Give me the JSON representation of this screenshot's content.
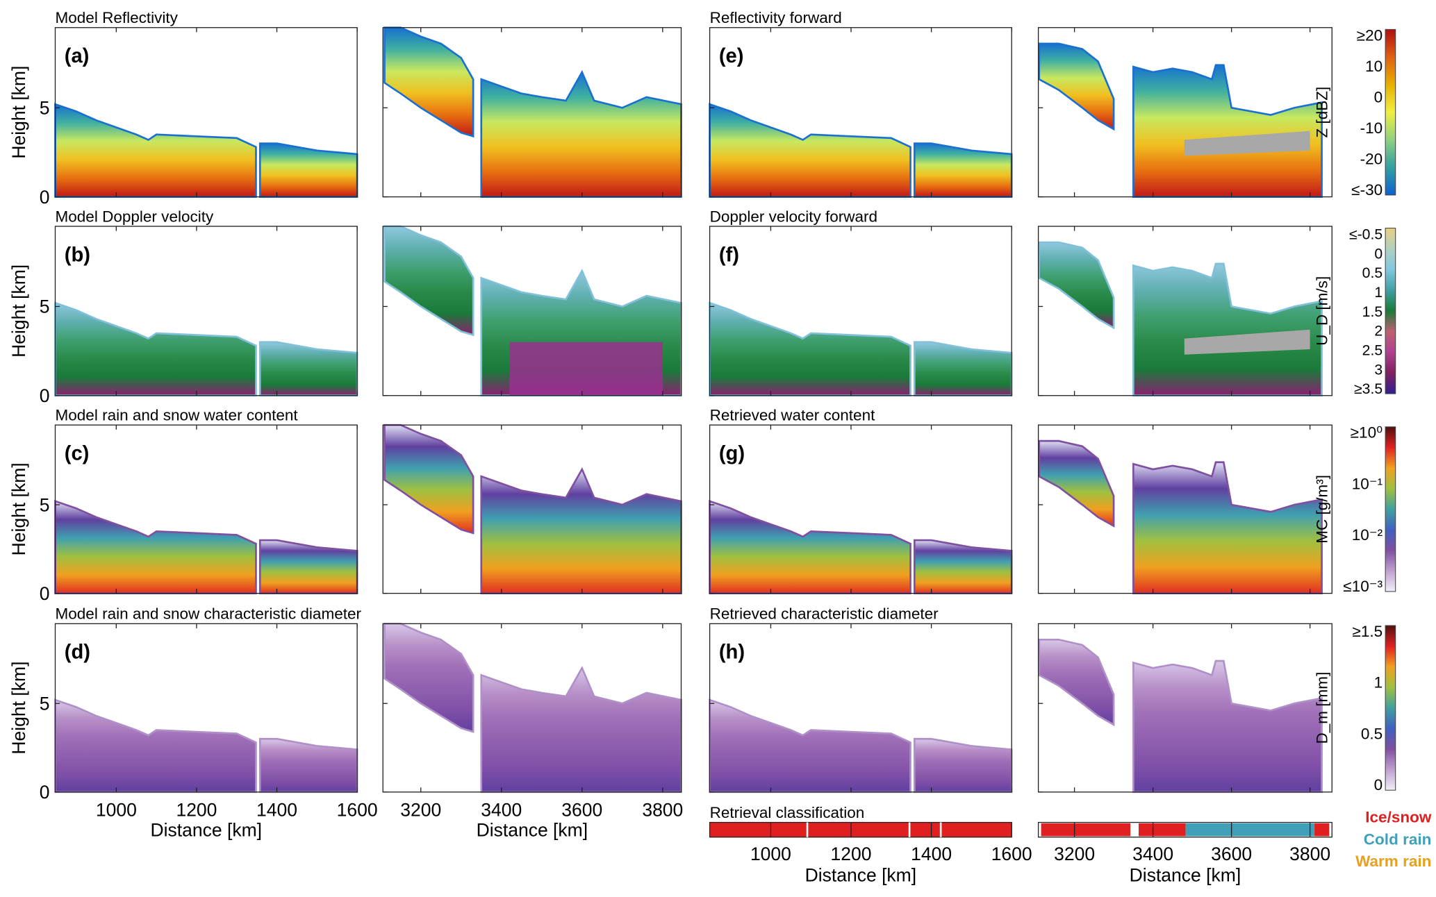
{
  "chart_data": {
    "type": "heatmap",
    "ylabel": "Height [km]",
    "xlabel": "Distance [km]",
    "ylim": [
      0,
      9.5
    ],
    "yticks": [
      "0",
      "5"
    ],
    "segments": [
      {
        "xlim": [
          848,
          1600
        ],
        "xticks": [
          "1000",
          "1200",
          "1400",
          "1600"
        ]
      },
      {
        "xlim": [
          3106,
          3846
        ],
        "xticks": [
          "3200",
          "3400",
          "3600",
          "3800"
        ]
      }
    ],
    "panels": [
      {
        "label": "(a)",
        "title": "Model Reflectivity",
        "variable": "Z"
      },
      {
        "label": "(b)",
        "title": "Model Doppler velocity",
        "variable": "UD"
      },
      {
        "label": "(c)",
        "title": "Model rain and snow water content",
        "variable": "MC"
      },
      {
        "label": "(d)",
        "title": "Model rain and snow characteristic diameter",
        "variable": "Dm"
      },
      {
        "label": "(e)",
        "title": "Reflectivity forward",
        "variable": "Z"
      },
      {
        "label": "(f)",
        "title": "Doppler velocity forward",
        "variable": "UD"
      },
      {
        "label": "(g)",
        "title": "Retrieved water content",
        "variable": "MC"
      },
      {
        "label": "(h)",
        "title": "Retrieved characteristic diameter",
        "variable": "Dm"
      }
    ],
    "colorbars": [
      {
        "label": "Z [dBZ]",
        "ticks": [
          "≥20",
          "10",
          "0",
          "-10",
          "-20",
          "≤-30"
        ],
        "colors": [
          "#b01010",
          "#e06010",
          "#e8b000",
          "#f0f040",
          "#90d080",
          "#30a0a0",
          "#1060d0"
        ]
      },
      {
        "label": "U_D [m/s]",
        "ticks": [
          "≤-0.5",
          "0",
          "0.5",
          "1",
          "1.5",
          "2",
          "2.5",
          "3",
          "≥3.5"
        ],
        "colors": [
          "#e8d080",
          "#b0d0c0",
          "#80c8e0",
          "#40a0a0",
          "#1a7a3a",
          "#c06070",
          "#b04090",
          "#802060",
          "#302090"
        ]
      },
      {
        "label": "MC [g/m³]",
        "ticks": [
          "≥10⁰",
          "10⁻¹",
          "10⁻²",
          "≤10⁻³"
        ],
        "colors": [
          "#501010",
          "#e02020",
          "#f0a020",
          "#a0c040",
          "#40a0a0",
          "#4060c0",
          "#8050a0",
          "#c0a0d0",
          "#f0f0f8"
        ]
      },
      {
        "label": "D_m [mm]",
        "ticks": [
          "≥1.5",
          "1",
          "0.5",
          "0"
        ],
        "colors": [
          "#501010",
          "#e02020",
          "#f0a020",
          "#a0c040",
          "#40a0a0",
          "#4060c0",
          "#8050a0",
          "#c0a0d0",
          "#f0f0f8"
        ]
      }
    ],
    "classification": {
      "title": "Retrieval classification",
      "legend": [
        {
          "label": "Ice/snow",
          "color": "#e02020"
        },
        {
          "label": "Cold rain",
          "color": "#40a0b8"
        },
        {
          "label": "Warm rain",
          "color": "#e8a020"
        }
      ]
    }
  }
}
